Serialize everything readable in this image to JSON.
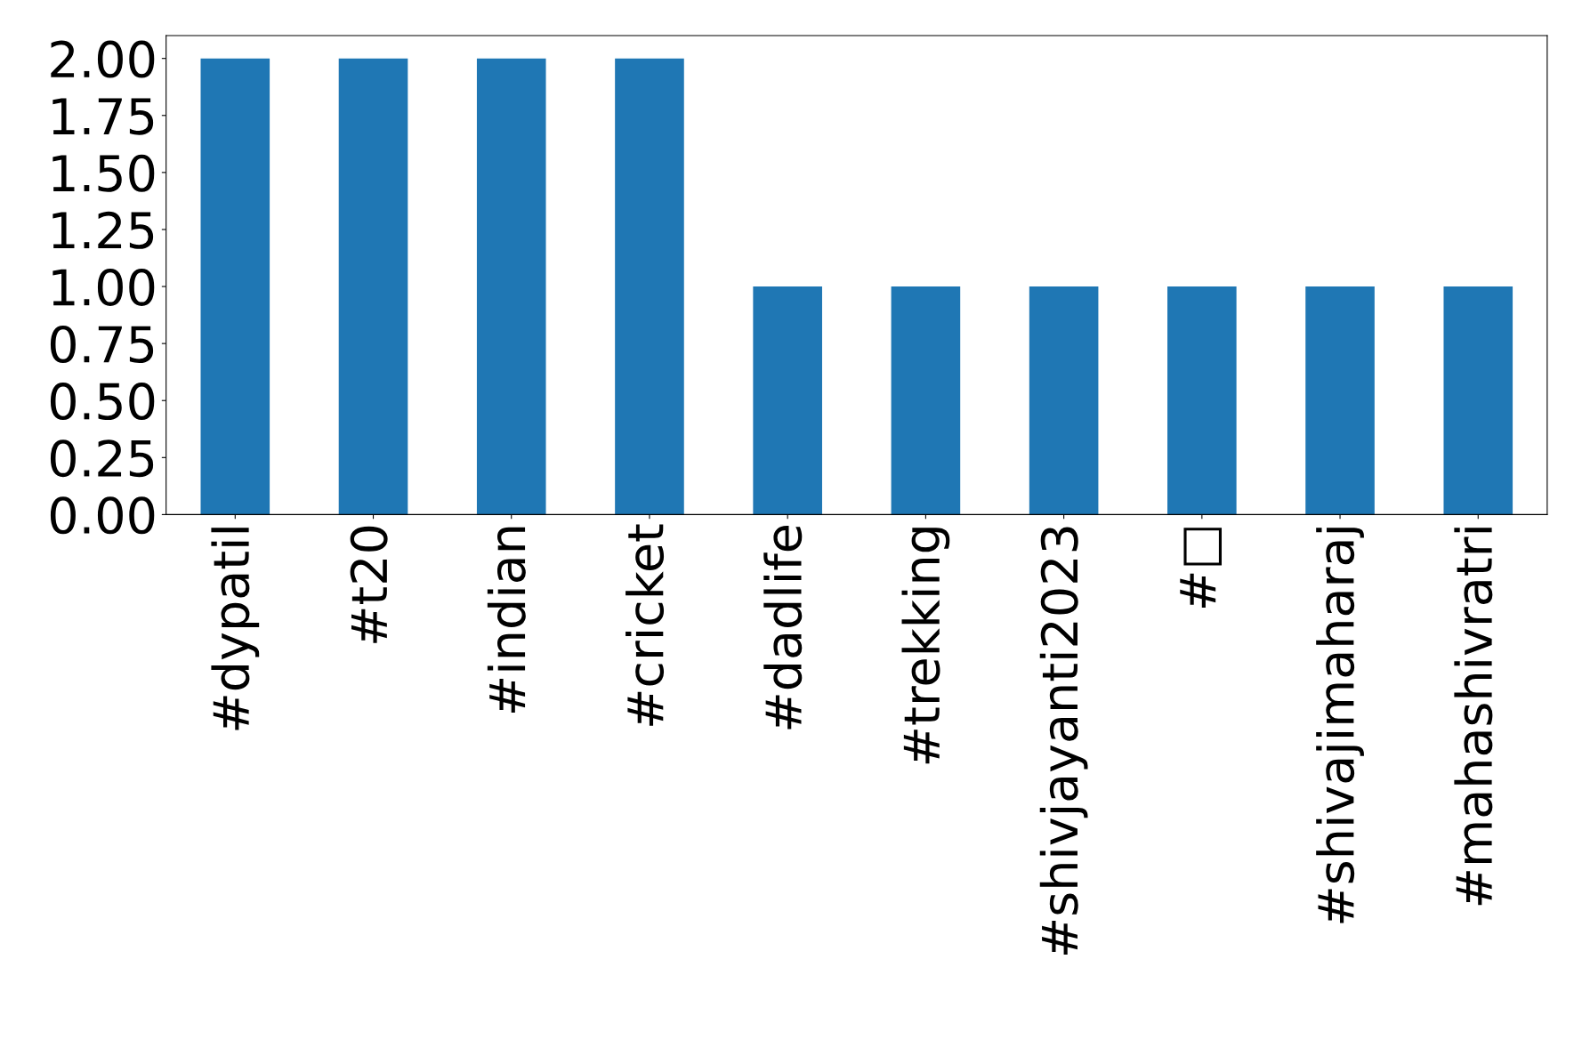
{
  "chart_data": {
    "type": "bar",
    "categories": [
      "#dypatil",
      "#t20",
      "#indian",
      "#cricket",
      "#dadlife",
      "#trekking",
      "#shivjayanti2023",
      "#□",
      "#shivajimaharaj",
      "#mahashivratri"
    ],
    "values": [
      2,
      2,
      2,
      2,
      1,
      1,
      1,
      1,
      1,
      1
    ],
    "color": "#1f77b4",
    "ylim": [
      0,
      2.1
    ],
    "yticks": [
      {
        "value": 0,
        "label": "0.00"
      },
      {
        "value": 0.25,
        "label": "0.25"
      },
      {
        "value": 0.5,
        "label": "0.50"
      },
      {
        "value": 0.75,
        "label": "0.75"
      },
      {
        "value": 1,
        "label": "1.00"
      },
      {
        "value": 1.25,
        "label": "1.25"
      },
      {
        "value": 1.5,
        "label": "1.50"
      },
      {
        "value": 1.75,
        "label": "1.75"
      },
      {
        "value": 2,
        "label": "2.00"
      }
    ],
    "grid": false,
    "legend": false
  }
}
